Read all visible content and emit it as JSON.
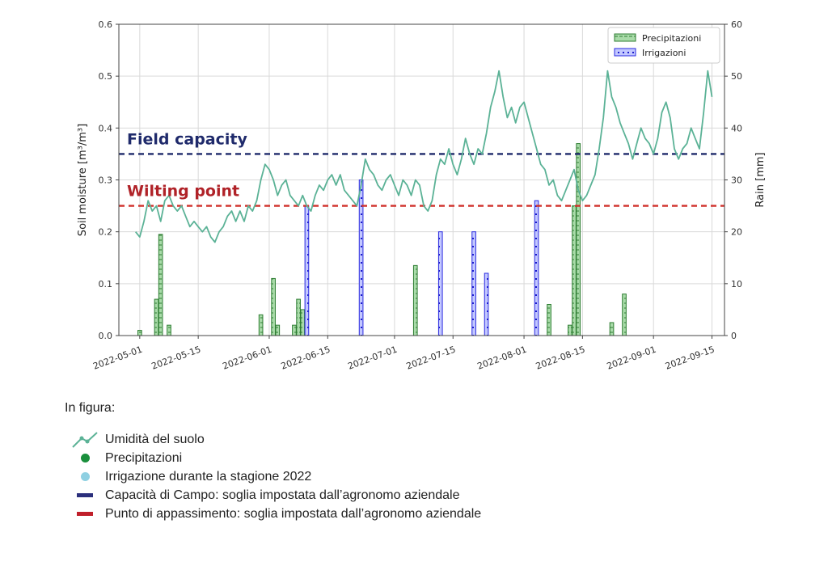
{
  "chart_data": {
    "type": "line+bar",
    "ylabel_left": "Soil moisture [m³/m³]",
    "ylabel_right": "Rain [mm]",
    "ylim_left": [
      0,
      0.6
    ],
    "ylim_right": [
      0,
      60
    ],
    "yticks_left": [
      "0.0",
      "0.1",
      "0.2",
      "0.3",
      "0.4",
      "0.5",
      "0.6"
    ],
    "yticks_right": [
      "0",
      "10",
      "20",
      "30",
      "40",
      "50",
      "60"
    ],
    "xlim": [
      "2022-04-26",
      "2022-09-18"
    ],
    "xticks": [
      "2022-05-01",
      "2022-05-15",
      "2022-06-01",
      "2022-06-15",
      "2022-07-01",
      "2022-07-15",
      "2022-08-01",
      "2022-08-15",
      "2022-09-01",
      "2022-09-15"
    ],
    "grid": true,
    "legend_position": "top-right",
    "thresholds": [
      {
        "label": "Field capacity",
        "value": 0.35,
        "color": "#1f2a6b",
        "text_color": "#1f2a6b"
      },
      {
        "label": "Wilting point",
        "value": 0.25,
        "color": "#d0302a",
        "text_color": "#b02228"
      }
    ],
    "series": [
      {
        "name": "Soil moisture",
        "type": "line",
        "axis": "left",
        "color": "#5bb296",
        "points": [
          [
            "2022-04-30",
            0.2
          ],
          [
            "2022-05-01",
            0.19
          ],
          [
            "2022-05-02",
            0.22
          ],
          [
            "2022-05-03",
            0.26
          ],
          [
            "2022-05-04",
            0.24
          ],
          [
            "2022-05-05",
            0.25
          ],
          [
            "2022-05-06",
            0.22
          ],
          [
            "2022-05-07",
            0.26
          ],
          [
            "2022-05-08",
            0.27
          ],
          [
            "2022-05-09",
            0.25
          ],
          [
            "2022-05-10",
            0.24
          ],
          [
            "2022-05-11",
            0.25
          ],
          [
            "2022-05-12",
            0.23
          ],
          [
            "2022-05-13",
            0.21
          ],
          [
            "2022-05-14",
            0.22
          ],
          [
            "2022-05-15",
            0.21
          ],
          [
            "2022-05-16",
            0.2
          ],
          [
            "2022-05-17",
            0.21
          ],
          [
            "2022-05-18",
            0.19
          ],
          [
            "2022-05-19",
            0.18
          ],
          [
            "2022-05-20",
            0.2
          ],
          [
            "2022-05-21",
            0.21
          ],
          [
            "2022-05-22",
            0.23
          ],
          [
            "2022-05-23",
            0.24
          ],
          [
            "2022-05-24",
            0.22
          ],
          [
            "2022-05-25",
            0.24
          ],
          [
            "2022-05-26",
            0.22
          ],
          [
            "2022-05-27",
            0.25
          ],
          [
            "2022-05-28",
            0.24
          ],
          [
            "2022-05-29",
            0.26
          ],
          [
            "2022-05-30",
            0.3
          ],
          [
            "2022-05-31",
            0.33
          ],
          [
            "2022-06-01",
            0.32
          ],
          [
            "2022-06-02",
            0.3
          ],
          [
            "2022-06-03",
            0.27
          ],
          [
            "2022-06-04",
            0.29
          ],
          [
            "2022-06-05",
            0.3
          ],
          [
            "2022-06-06",
            0.27
          ],
          [
            "2022-06-07",
            0.26
          ],
          [
            "2022-06-08",
            0.25
          ],
          [
            "2022-06-09",
            0.27
          ],
          [
            "2022-06-10",
            0.25
          ],
          [
            "2022-06-11",
            0.24
          ],
          [
            "2022-06-12",
            0.27
          ],
          [
            "2022-06-13",
            0.29
          ],
          [
            "2022-06-14",
            0.28
          ],
          [
            "2022-06-15",
            0.3
          ],
          [
            "2022-06-16",
            0.31
          ],
          [
            "2022-06-17",
            0.29
          ],
          [
            "2022-06-18",
            0.31
          ],
          [
            "2022-06-19",
            0.28
          ],
          [
            "2022-06-20",
            0.27
          ],
          [
            "2022-06-21",
            0.26
          ],
          [
            "2022-06-22",
            0.25
          ],
          [
            "2022-06-23",
            0.29
          ],
          [
            "2022-06-24",
            0.34
          ],
          [
            "2022-06-25",
            0.32
          ],
          [
            "2022-06-26",
            0.31
          ],
          [
            "2022-06-27",
            0.29
          ],
          [
            "2022-06-28",
            0.28
          ],
          [
            "2022-06-29",
            0.3
          ],
          [
            "2022-06-30",
            0.31
          ],
          [
            "2022-07-01",
            0.29
          ],
          [
            "2022-07-02",
            0.27
          ],
          [
            "2022-07-03",
            0.3
          ],
          [
            "2022-07-04",
            0.29
          ],
          [
            "2022-07-05",
            0.27
          ],
          [
            "2022-07-06",
            0.3
          ],
          [
            "2022-07-07",
            0.29
          ],
          [
            "2022-07-08",
            0.25
          ],
          [
            "2022-07-09",
            0.24
          ],
          [
            "2022-07-10",
            0.26
          ],
          [
            "2022-07-11",
            0.31
          ],
          [
            "2022-07-12",
            0.34
          ],
          [
            "2022-07-13",
            0.33
          ],
          [
            "2022-07-14",
            0.36
          ],
          [
            "2022-07-15",
            0.33
          ],
          [
            "2022-07-16",
            0.31
          ],
          [
            "2022-07-17",
            0.34
          ],
          [
            "2022-07-18",
            0.38
          ],
          [
            "2022-07-19",
            0.35
          ],
          [
            "2022-07-20",
            0.33
          ],
          [
            "2022-07-21",
            0.36
          ],
          [
            "2022-07-22",
            0.35
          ],
          [
            "2022-07-23",
            0.39
          ],
          [
            "2022-07-24",
            0.44
          ],
          [
            "2022-07-25",
            0.47
          ],
          [
            "2022-07-26",
            0.51
          ],
          [
            "2022-07-27",
            0.46
          ],
          [
            "2022-07-28",
            0.42
          ],
          [
            "2022-07-29",
            0.44
          ],
          [
            "2022-07-30",
            0.41
          ],
          [
            "2022-07-31",
            0.44
          ],
          [
            "2022-08-01",
            0.45
          ],
          [
            "2022-08-02",
            0.42
          ],
          [
            "2022-08-03",
            0.39
          ],
          [
            "2022-08-04",
            0.36
          ],
          [
            "2022-08-05",
            0.33
          ],
          [
            "2022-08-06",
            0.32
          ],
          [
            "2022-08-07",
            0.29
          ],
          [
            "2022-08-08",
            0.3
          ],
          [
            "2022-08-09",
            0.27
          ],
          [
            "2022-08-10",
            0.26
          ],
          [
            "2022-08-11",
            0.28
          ],
          [
            "2022-08-12",
            0.3
          ],
          [
            "2022-08-13",
            0.32
          ],
          [
            "2022-08-14",
            0.28
          ],
          [
            "2022-08-15",
            0.26
          ],
          [
            "2022-08-16",
            0.27
          ],
          [
            "2022-08-17",
            0.29
          ],
          [
            "2022-08-18",
            0.31
          ],
          [
            "2022-08-19",
            0.36
          ],
          [
            "2022-08-20",
            0.42
          ],
          [
            "2022-08-21",
            0.51
          ],
          [
            "2022-08-22",
            0.46
          ],
          [
            "2022-08-23",
            0.44
          ],
          [
            "2022-08-24",
            0.41
          ],
          [
            "2022-08-25",
            0.39
          ],
          [
            "2022-08-26",
            0.37
          ],
          [
            "2022-08-27",
            0.34
          ],
          [
            "2022-08-28",
            0.37
          ],
          [
            "2022-08-29",
            0.4
          ],
          [
            "2022-08-30",
            0.38
          ],
          [
            "2022-08-31",
            0.37
          ],
          [
            "2022-09-01",
            0.35
          ],
          [
            "2022-09-02",
            0.38
          ],
          [
            "2022-09-03",
            0.43
          ],
          [
            "2022-09-04",
            0.45
          ],
          [
            "2022-09-05",
            0.42
          ],
          [
            "2022-09-06",
            0.36
          ],
          [
            "2022-09-07",
            0.34
          ],
          [
            "2022-09-08",
            0.36
          ],
          [
            "2022-09-09",
            0.37
          ],
          [
            "2022-09-10",
            0.4
          ],
          [
            "2022-09-11",
            0.38
          ],
          [
            "2022-09-12",
            0.36
          ],
          [
            "2022-09-13",
            0.43
          ],
          [
            "2022-09-14",
            0.51
          ],
          [
            "2022-09-15",
            0.46
          ]
        ]
      },
      {
        "name": "Precipitazioni",
        "type": "bar",
        "axis": "right",
        "color": "#a9dba9",
        "edge": "#2e7d32",
        "points": [
          [
            "2022-05-01",
            1
          ],
          [
            "2022-05-05",
            7
          ],
          [
            "2022-05-06",
            19.5
          ],
          [
            "2022-05-08",
            2
          ],
          [
            "2022-05-30",
            4
          ],
          [
            "2022-06-02",
            11
          ],
          [
            "2022-06-03",
            2
          ],
          [
            "2022-06-07",
            2
          ],
          [
            "2022-06-08",
            7
          ],
          [
            "2022-06-09",
            5
          ],
          [
            "2022-07-06",
            13.5
          ],
          [
            "2022-08-07",
            6
          ],
          [
            "2022-08-12",
            2
          ],
          [
            "2022-08-13",
            25
          ],
          [
            "2022-08-14",
            37
          ],
          [
            "2022-08-22",
            2.5
          ],
          [
            "2022-08-25",
            8
          ]
        ]
      },
      {
        "name": "Irrigazioni",
        "type": "bar",
        "axis": "right",
        "color": "#b8c0ff",
        "edge": "#2a2ae0",
        "points": [
          [
            "2022-06-10",
            25
          ],
          [
            "2022-06-23",
            30
          ],
          [
            "2022-07-12",
            20
          ],
          [
            "2022-07-20",
            20
          ],
          [
            "2022-07-23",
            12
          ],
          [
            "2022-08-04",
            26
          ]
        ]
      }
    ]
  },
  "caption": {
    "title": "In figura:",
    "items": [
      {
        "text": "Umidità del suolo",
        "symbol": "line",
        "color": "#5bb296"
      },
      {
        "text": "Precipitazioni",
        "symbol": "dot",
        "color": "#1a8f3c"
      },
      {
        "text": "Irrigazione durante la stagione 2022",
        "symbol": "dot",
        "color": "#8fd0e2"
      },
      {
        "text": "Capacità di Campo: soglia impostata dall’agronomo aziendale",
        "symbol": "bar",
        "color": "#2b2f7c"
      },
      {
        "text": "Punto di appassimento: soglia impostata dall’agronomo aziendale",
        "symbol": "bar",
        "color": "#c01f2b"
      }
    ]
  }
}
